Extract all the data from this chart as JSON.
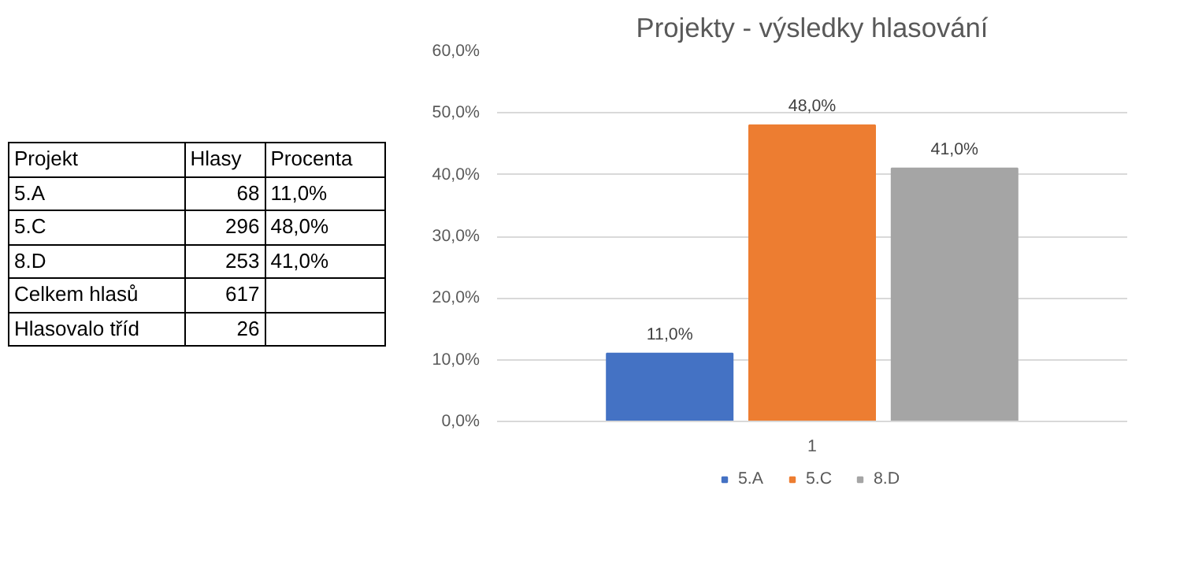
{
  "chart_data": {
    "type": "bar",
    "title": "Projekty - výsledky hlasování",
    "categories": [
      "1"
    ],
    "series": [
      {
        "name": "5.A",
        "color": "#4472c4",
        "values": [
          11
        ],
        "value_labels": [
          "11,0%"
        ]
      },
      {
        "name": "5.C",
        "color": "#ed7d31",
        "values": [
          48
        ],
        "value_labels": [
          "48,0%"
        ]
      },
      {
        "name": "8.D",
        "color": "#a5a5a5",
        "values": [
          41
        ],
        "value_labels": [
          "41,0%"
        ]
      }
    ],
    "ylim": [
      0,
      60
    ],
    "yticks": [
      {
        "value": 0,
        "label": "0,0%"
      },
      {
        "value": 10,
        "label": "10,0%"
      },
      {
        "value": 20,
        "label": "20,0%"
      },
      {
        "value": 30,
        "label": "30,0%"
      },
      {
        "value": 40,
        "label": "40,0%"
      },
      {
        "value": 50,
        "label": "50,0%"
      },
      {
        "value": 60,
        "label": "60,0%"
      }
    ],
    "grid": "y",
    "legend": "bottom",
    "annotations": [
      "Projekt",
      "Hlasy",
      "Procenta",
      "5.A",
      "68",
      "11,0%",
      "5.C",
      "296",
      "48,0%",
      "8.D",
      "253",
      "41,0%",
      "Celkem hlasů",
      "617",
      "Hlasovalo tříd",
      "26"
    ]
  }
}
